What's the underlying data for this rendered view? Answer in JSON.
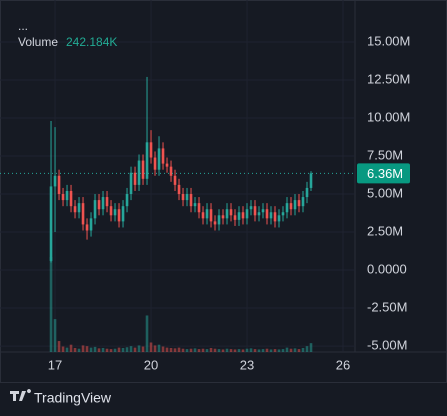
{
  "chart_data": {
    "type": "candlestick",
    "menu": "...",
    "x": [
      16.875,
      17,
      17.125,
      17.25,
      17.375,
      17.5,
      17.625,
      17.75,
      17.875,
      18,
      18.125,
      18.25,
      18.375,
      18.5,
      18.625,
      18.75,
      18.875,
      19,
      19.125,
      19.25,
      19.375,
      19.5,
      19.625,
      19.75,
      19.875,
      20,
      20.125,
      20.25,
      20.375,
      20.5,
      20.625,
      20.75,
      20.875,
      21,
      21.125,
      21.25,
      21.375,
      21.5,
      21.625,
      21.75,
      21.875,
      22,
      22.125,
      22.25,
      22.375,
      22.5,
      22.625,
      22.75,
      22.875,
      23,
      23.125,
      23.25,
      23.375,
      23.5,
      23.625,
      23.75,
      23.875,
      24,
      24.125,
      24.25,
      24.375,
      24.5,
      24.625,
      24.75,
      24.875,
      25
    ],
    "open": [
      0.6,
      5.5,
      6.2,
      5.0,
      4.6,
      5.2,
      4.2,
      3.8,
      4.4,
      3.0,
      2.6,
      3.4,
      4.6,
      4.0,
      4.8,
      4.2,
      3.6,
      4.0,
      3.2,
      4.2,
      5.0,
      6.4,
      5.6,
      7.2,
      6.0,
      8.4,
      7.4,
      6.6,
      8.0,
      7.0,
      6.8,
      6.2,
      5.6,
      5.0,
      4.6,
      5.0,
      4.2,
      4.4,
      3.8,
      3.4,
      4.0,
      3.2,
      3.0,
      3.6,
      3.4,
      4.0,
      3.6,
      3.3,
      3.8,
      3.4,
      4.0,
      4.2,
      3.6,
      3.8,
      4.0,
      3.4,
      3.8,
      3.2,
      3.6,
      3.8,
      4.4,
      4.0,
      4.6,
      4.2,
      4.8,
      5.4
    ],
    "high": [
      9.8,
      9.4,
      6.6,
      5.4,
      5.6,
      5.6,
      4.6,
      4.8,
      4.8,
      3.4,
      3.8,
      5.0,
      5.0,
      5.2,
      5.2,
      4.6,
      4.4,
      4.4,
      4.6,
      5.4,
      6.8,
      6.8,
      7.6,
      7.6,
      12.7,
      9.2,
      7.8,
      8.8,
      8.4,
      7.4,
      7.2,
      6.6,
      6.0,
      5.4,
      5.4,
      5.4,
      4.8,
      4.8,
      4.2,
      4.4,
      4.4,
      3.6,
      4.0,
      4.0,
      4.4,
      4.4,
      4.0,
      4.2,
      4.2,
      4.4,
      4.6,
      4.6,
      4.2,
      4.4,
      4.4,
      4.2,
      4.2,
      4.0,
      4.2,
      4.8,
      4.8,
      5.0,
      5.0,
      5.2,
      5.8,
      6.5
    ],
    "low": [
      0.5,
      2.5,
      4.6,
      4.2,
      4.2,
      3.8,
      3.4,
      3.4,
      2.6,
      2.0,
      2.2,
      3.0,
      3.6,
      3.6,
      3.8,
      3.2,
      3.2,
      2.8,
      2.8,
      3.8,
      4.6,
      5.2,
      5.2,
      5.6,
      5.6,
      7.0,
      6.2,
      6.2,
      6.6,
      6.4,
      5.8,
      5.2,
      4.6,
      4.2,
      4.2,
      3.8,
      3.8,
      3.4,
      3.0,
      3.0,
      2.8,
      2.6,
      2.6,
      3.0,
      3.0,
      3.2,
      2.9,
      2.9,
      3.0,
      3.0,
      3.6,
      3.2,
      3.2,
      3.4,
      3.0,
      3.0,
      2.8,
      2.8,
      3.2,
      3.4,
      3.6,
      3.6,
      3.8,
      3.8,
      4.4,
      5.2
    ],
    "close": [
      5.5,
      6.2,
      5.0,
      4.6,
      5.2,
      4.2,
      3.8,
      4.4,
      3.0,
      2.6,
      3.4,
      4.6,
      4.0,
      4.8,
      4.2,
      3.6,
      4.0,
      3.2,
      4.2,
      5.0,
      6.4,
      5.6,
      7.2,
      6.0,
      8.4,
      7.4,
      6.6,
      8.0,
      7.0,
      6.8,
      6.2,
      5.6,
      5.0,
      4.6,
      5.0,
      4.2,
      4.4,
      3.8,
      3.4,
      4.0,
      3.2,
      3.0,
      3.6,
      3.4,
      4.0,
      3.6,
      3.3,
      3.8,
      3.4,
      4.0,
      4.2,
      3.6,
      3.8,
      4.0,
      3.4,
      3.8,
      3.2,
      3.6,
      3.8,
      4.4,
      4.0,
      4.6,
      4.2,
      4.8,
      5.4,
      6.36
    ],
    "last_price_label": "6.36M",
    "up_color": "#26a69a",
    "down_color": "#ef5350",
    "volume": {
      "name": "Volume",
      "color": "#22ab94",
      "values": [
        2600,
        900,
        300,
        150,
        120,
        200,
        110,
        90,
        180,
        160,
        120,
        140,
        100,
        110,
        90,
        80,
        90,
        120,
        110,
        130,
        160,
        120,
        180,
        150,
        1000,
        260,
        180,
        200,
        150,
        120,
        110,
        100,
        120,
        90,
        80,
        90,
        100,
        80,
        90,
        80,
        110,
        90,
        80,
        70,
        90,
        80,
        70,
        80,
        70,
        90,
        100,
        80,
        70,
        80,
        90,
        70,
        80,
        70,
        80,
        120,
        90,
        100,
        80,
        110,
        160,
        242.184
      ],
      "value_label": "242.184K"
    },
    "ylim": [
      -5.39,
      17.76
    ],
    "yticks": [
      {
        "value": 15,
        "label": "15.00M"
      },
      {
        "value": 12.5,
        "label": "12.50M"
      },
      {
        "value": 10,
        "label": "10.00M"
      },
      {
        "value": 7.5,
        "label": "7.50M"
      },
      {
        "value": 5,
        "label": "5.00M"
      },
      {
        "value": 2.5,
        "label": "2.50M"
      },
      {
        "value": 0,
        "label": "0.0000"
      },
      {
        "value": -2.5,
        "label": "-2.50M"
      },
      {
        "value": -5,
        "label": "-5.00M"
      }
    ],
    "xlim": [
      15.28,
      26.375
    ],
    "xticks": [
      17,
      20,
      23,
      26
    ],
    "grid": true
  },
  "branding": "TradingView"
}
